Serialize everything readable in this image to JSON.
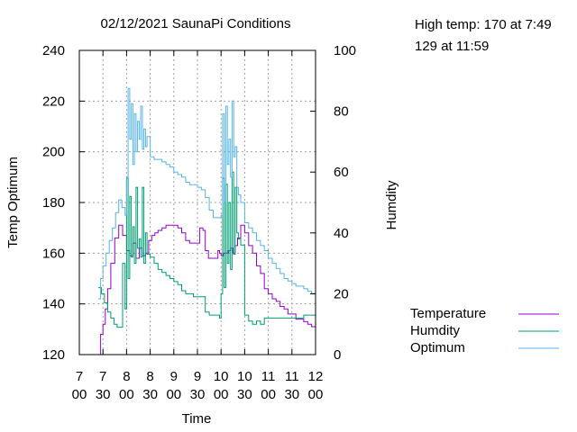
{
  "colors": {
    "temperature": "#9400d3",
    "humidity": "#009e73",
    "optimum": "#56b4e9",
    "grid": "#a0a0a0"
  },
  "info": {
    "line1": "High temp: 170 at 7:49",
    "line2": "129 at 11:59"
  },
  "chart_data": {
    "type": "line",
    "title": "02/12/2021 SaunaPi Conditions",
    "xlabel": "Time",
    "ylabel": "Temp   Optimum",
    "y2label": "Humdity",
    "xlim": [
      0,
      300
    ],
    "ylim": [
      120,
      240
    ],
    "y2lim": [
      0,
      100
    ],
    "grid": true,
    "legend_position": "right",
    "x_ticks": [
      {
        "v": 0,
        "h": "7",
        "m": "00"
      },
      {
        "v": 30,
        "h": "7",
        "m": "30"
      },
      {
        "v": 60,
        "h": "8",
        "m": "00"
      },
      {
        "v": 90,
        "h": "8",
        "m": "30"
      },
      {
        "v": 120,
        "h": "9",
        "m": "00"
      },
      {
        "v": 150,
        "h": "9",
        "m": "30"
      },
      {
        "v": 180,
        "h": "10",
        "m": "00"
      },
      {
        "v": 210,
        "h": "10",
        "m": "30"
      },
      {
        "v": 240,
        "h": "11",
        "m": "00"
      },
      {
        "v": 270,
        "h": "11",
        "m": "30"
      },
      {
        "v": 300,
        "h": "12",
        "m": "00"
      }
    ],
    "y_ticks": [
      120,
      140,
      160,
      180,
      200,
      220,
      240
    ],
    "y2_ticks": [
      0,
      20,
      40,
      60,
      80,
      100
    ],
    "series": [
      {
        "name": "Temperature",
        "axis": "y",
        "color": "#9400d3",
        "x": [
          24,
          27,
          30,
          33,
          36,
          40,
          45,
          50,
          55,
          60,
          64,
          68,
          72,
          76,
          80,
          84,
          88,
          92,
          96,
          100,
          105,
          110,
          115,
          120,
          125,
          130,
          135,
          140,
          145,
          150,
          153,
          157,
          160,
          164,
          168,
          172,
          176,
          178,
          180,
          183,
          186,
          189,
          192,
          195,
          198,
          201,
          205,
          210,
          215,
          220,
          225,
          230,
          235,
          240,
          245,
          250,
          255,
          260,
          265,
          270,
          275,
          280,
          285,
          290,
          295,
          300
        ],
        "y": [
          120,
          128,
          132,
          138,
          146,
          156,
          166,
          171,
          167,
          161,
          159,
          164,
          158,
          162,
          159,
          160,
          165,
          167,
          168,
          169,
          170,
          171,
          171,
          171,
          170,
          168,
          165,
          164,
          164,
          164,
          170,
          169,
          161,
          158,
          158,
          158,
          161,
          160,
          159,
          160,
          160,
          161,
          162,
          160,
          163,
          166,
          171,
          168,
          163,
          160,
          155,
          152,
          146,
          144,
          142,
          141,
          139,
          138,
          136,
          136,
          134,
          134,
          133,
          132,
          131,
          129
        ]
      },
      {
        "name": "Humdity",
        "axis": "y2",
        "color": "#009e73",
        "x": [
          24,
          28,
          32,
          36,
          40,
          44,
          48,
          52,
          55,
          58,
          60,
          62,
          64,
          66,
          68,
          70,
          72,
          74,
          76,
          78,
          80,
          82,
          84,
          86,
          90,
          95,
          100,
          105,
          110,
          115,
          120,
          125,
          130,
          135,
          140,
          145,
          150,
          155,
          160,
          165,
          170,
          175,
          178,
          180,
          182,
          184,
          186,
          188,
          190,
          192,
          194,
          196,
          198,
          200,
          202,
          205,
          210,
          215,
          220,
          225,
          230,
          235,
          240,
          245,
          250,
          255,
          260,
          265,
          270,
          275,
          280,
          285,
          290,
          295,
          300
        ],
        "y": [
          22,
          20,
          17,
          14,
          12,
          10,
          9,
          9,
          30,
          15,
          58,
          25,
          52,
          32,
          42,
          30,
          55,
          35,
          38,
          32,
          55,
          30,
          40,
          33,
          32,
          30,
          28,
          27,
          26,
          25,
          24,
          23,
          21,
          20,
          20,
          19,
          19,
          19,
          14,
          13,
          13,
          13,
          12,
          20,
          58,
          22,
          56,
          30,
          50,
          28,
          60,
          33,
          55,
          40,
          38,
          36,
          13,
          11,
          10,
          11,
          10,
          12,
          12,
          12,
          12,
          12,
          12,
          12,
          12,
          12,
          12,
          13,
          13,
          13,
          13
        ]
      },
      {
        "name": "Optimum",
        "axis": "y",
        "color": "#56b4e9",
        "x": [
          24,
          27,
          30,
          34,
          38,
          42,
          46,
          50,
          54,
          58,
          60,
          62,
          64,
          66,
          68,
          70,
          72,
          74,
          76,
          78,
          80,
          82,
          84,
          86,
          90,
          95,
          100,
          105,
          110,
          115,
          120,
          125,
          130,
          135,
          140,
          145,
          150,
          155,
          160,
          165,
          170,
          175,
          178,
          180,
          182,
          184,
          186,
          188,
          190,
          192,
          194,
          196,
          198,
          200,
          202,
          205,
          210,
          215,
          220,
          225,
          230,
          235,
          240,
          245,
          250,
          255,
          260,
          265,
          270,
          275,
          280,
          285,
          290,
          295,
          300
        ],
        "y": [
          142,
          150,
          155,
          160,
          165,
          170,
          176,
          181,
          178,
          175,
          190,
          225,
          205,
          219,
          195,
          215,
          200,
          212,
          205,
          218,
          201,
          209,
          202,
          206,
          198,
          197,
          197,
          196,
          195,
          194,
          192,
          191,
          190,
          188,
          187,
          187,
          186,
          185,
          182,
          177,
          174,
          174,
          174,
          175,
          215,
          180,
          218,
          195,
          205,
          190,
          220,
          198,
          202,
          186,
          183,
          180,
          172,
          170,
          168,
          165,
          163,
          161,
          158,
          156,
          154,
          152,
          150,
          149,
          148,
          147,
          147,
          146,
          145,
          144,
          143
        ]
      }
    ]
  }
}
